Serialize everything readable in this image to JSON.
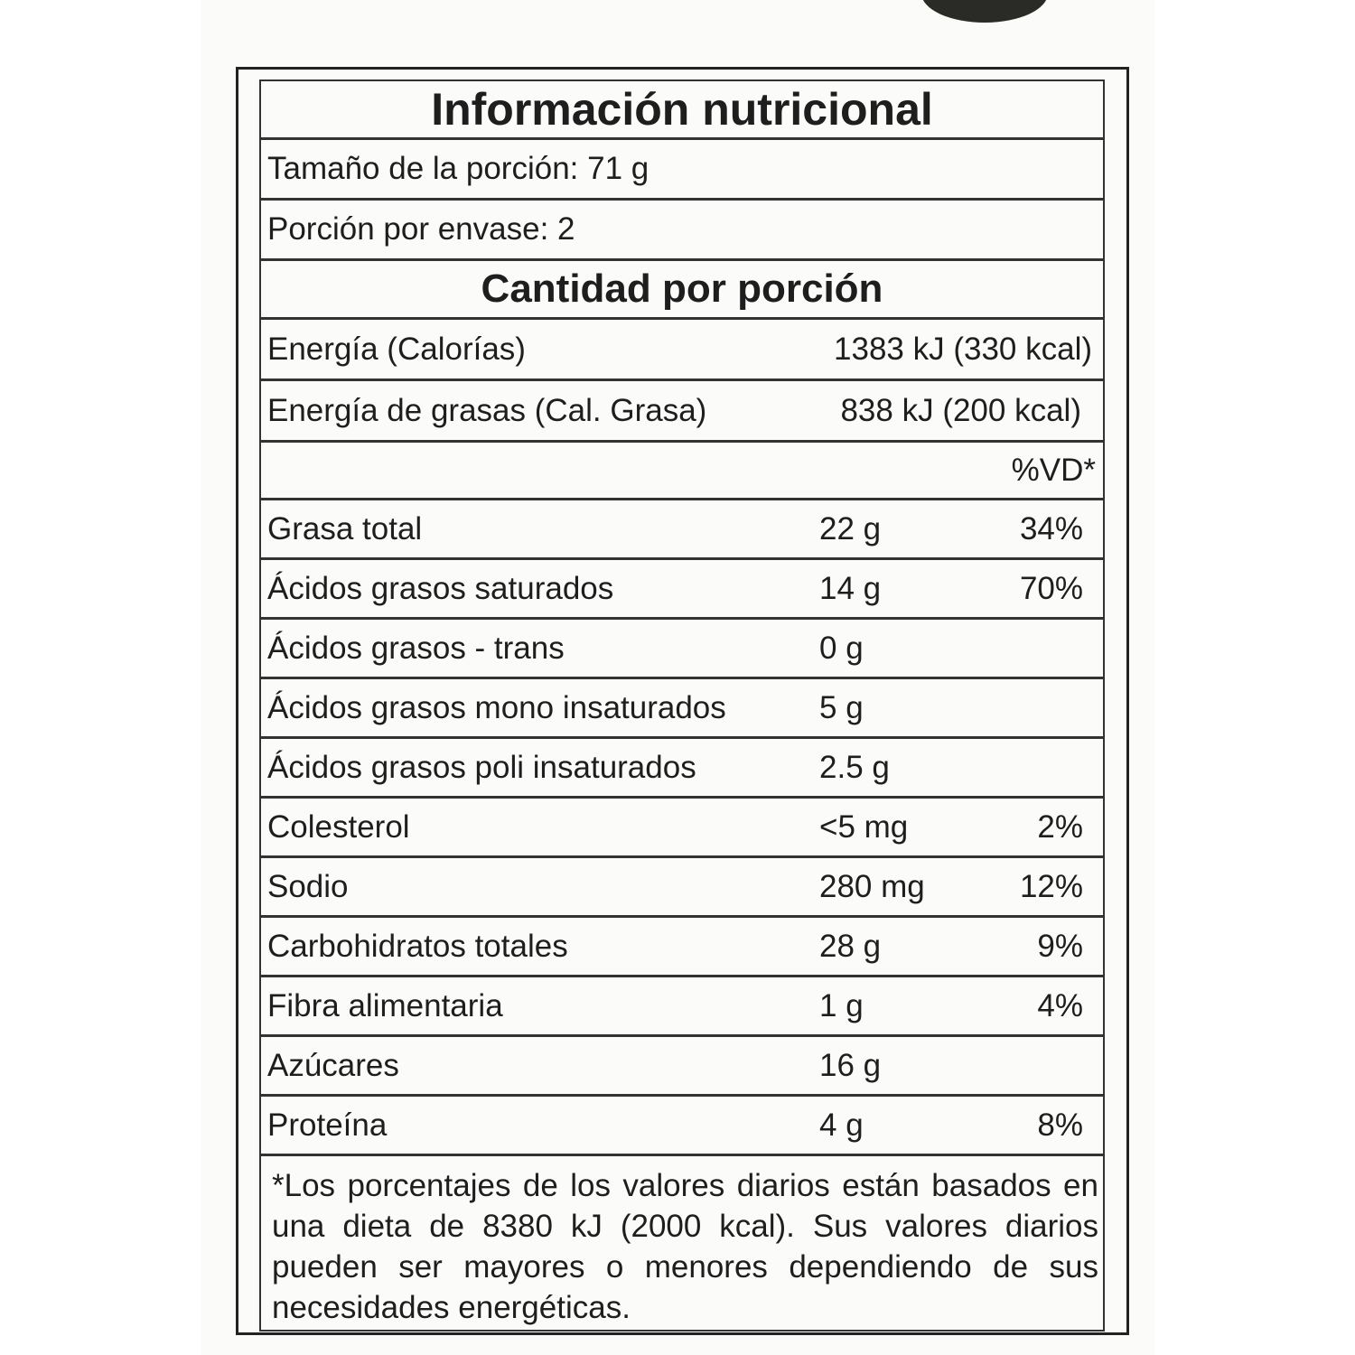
{
  "title": "Información nutricional",
  "serving_size": "Tamaño de la porción: 71 g",
  "servings_per_container": "Porción por envase: 2",
  "amount_header": "Cantidad por porción",
  "energy": {
    "label": "Energía (Calorías)",
    "value": "1383 kJ (330 kcal)"
  },
  "fat_energy": {
    "label": "Energía de grasas (Cal. Grasa)",
    "value": "838 kJ (200 kcal)"
  },
  "dv_header": "%VD*",
  "nutrients": [
    {
      "label": "Grasa total",
      "amount": "22 g",
      "dv": "34%"
    },
    {
      "label": "Ácidos grasos saturados",
      "amount": "14 g",
      "dv": "70%"
    },
    {
      "label": "Ácidos grasos - trans",
      "amount": "0 g",
      "dv": ""
    },
    {
      "label": "Ácidos grasos mono insaturados",
      "amount": "5 g",
      "dv": ""
    },
    {
      "label": "Ácidos grasos poli insaturados",
      "amount": "2.5 g",
      "dv": ""
    },
    {
      "label": "Colesterol",
      "amount": "<5 mg",
      "dv": "2%"
    },
    {
      "label": "Sodio",
      "amount": "280 mg",
      "dv": "12%"
    },
    {
      "label": "Carbohidratos totales",
      "amount": "28 g",
      "dv": "9%"
    },
    {
      "label": "Fibra alimentaria",
      "amount": "1 g",
      "dv": "4%"
    },
    {
      "label": "Azúcares",
      "amount": "16 g",
      "dv": ""
    },
    {
      "label": "Proteína",
      "amount": "4 g",
      "dv": "8%"
    }
  ],
  "footnote": "*Los porcentajes de los valores diarios están basados en una dieta de 8380 kJ (2000 kcal). Sus valores diarios pueden ser mayores o menores dependiendo de sus necesidades energéticas."
}
